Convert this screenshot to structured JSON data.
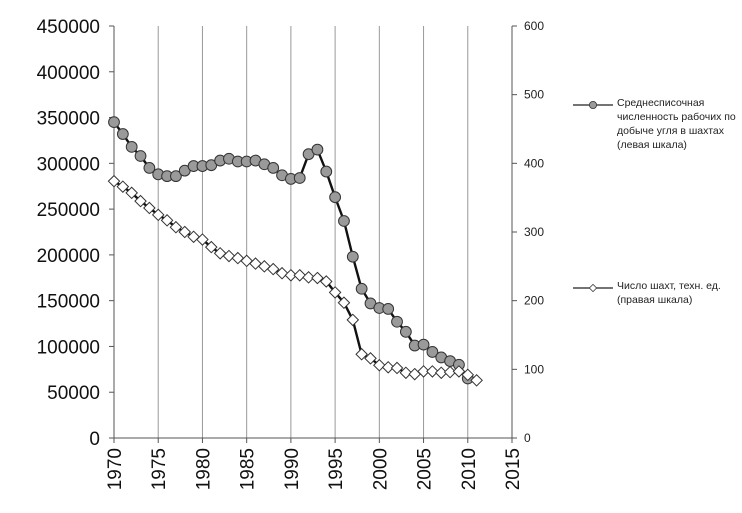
{
  "chart_data": {
    "type": "line",
    "title": "",
    "xlabel": "",
    "ylabel": "",
    "x_ticks": [
      "1970",
      "1975",
      "1980",
      "1985",
      "1990",
      "1995",
      "2000",
      "2005",
      "2010",
      "2015"
    ],
    "x_range": [
      1970,
      2015
    ],
    "left_axis": {
      "range": [
        0,
        450000
      ],
      "ticks": [
        "0",
        "50000",
        "100000",
        "150000",
        "200000",
        "250000",
        "300000",
        "350000",
        "400000",
        "450000"
      ]
    },
    "right_axis": {
      "range": [
        0,
        600
      ],
      "ticks": [
        "0",
        "100",
        "200",
        "300",
        "400",
        "500",
        "600"
      ]
    },
    "grid": "vertical",
    "legend_position": "right",
    "series": [
      {
        "name": "Среднесписочная численность рабочих по добыче угля в шахтах (левая шкала)",
        "axis": "left",
        "marker": "circle",
        "color": "#9a9a9a",
        "x": [
          1970,
          1971,
          1972,
          1973,
          1974,
          1975,
          1976,
          1977,
          1978,
          1979,
          1980,
          1981,
          1982,
          1983,
          1984,
          1985,
          1986,
          1987,
          1988,
          1989,
          1990,
          1991,
          1992,
          1993,
          1994,
          1995,
          1996,
          1997,
          1998,
          1999,
          2000,
          2001,
          2002,
          2003,
          2004,
          2005,
          2006,
          2007,
          2008,
          2009,
          2010
        ],
        "y": [
          345000,
          332000,
          318000,
          308000,
          295000,
          288000,
          286000,
          286000,
          292000,
          297000,
          297000,
          298000,
          303000,
          305000,
          302000,
          302000,
          303000,
          299000,
          295000,
          287000,
          283000,
          284000,
          310000,
          315000,
          291000,
          263000,
          237000,
          198000,
          163000,
          147000,
          142000,
          141000,
          127000,
          116000,
          101000,
          102000,
          94000,
          88000,
          84000,
          80000,
          65000
        ]
      },
      {
        "name": "Число шахт, техн. ед. (правая шкала)",
        "axis": "right",
        "marker": "diamond",
        "color": "#ffffff",
        "x": [
          1970,
          1971,
          1972,
          1973,
          1974,
          1975,
          1976,
          1977,
          1978,
          1979,
          1980,
          1981,
          1982,
          1983,
          1984,
          1985,
          1986,
          1987,
          1988,
          1989,
          1990,
          1991,
          1992,
          1993,
          1994,
          1995,
          1996,
          1997,
          1998,
          1999,
          2000,
          2001,
          2002,
          2003,
          2004,
          2005,
          2006,
          2007,
          2008,
          2009,
          2010,
          2011
        ],
        "y": [
          374,
          366,
          357,
          345,
          335,
          325,
          317,
          307,
          300,
          293,
          289,
          278,
          269,
          265,
          262,
          258,
          254,
          250,
          246,
          240,
          237,
          237,
          234,
          233,
          228,
          212,
          197,
          172,
          122,
          116,
          106,
          103,
          102,
          95,
          93,
          97,
          97,
          95,
          96,
          97,
          92,
          84
        ]
      }
    ]
  }
}
